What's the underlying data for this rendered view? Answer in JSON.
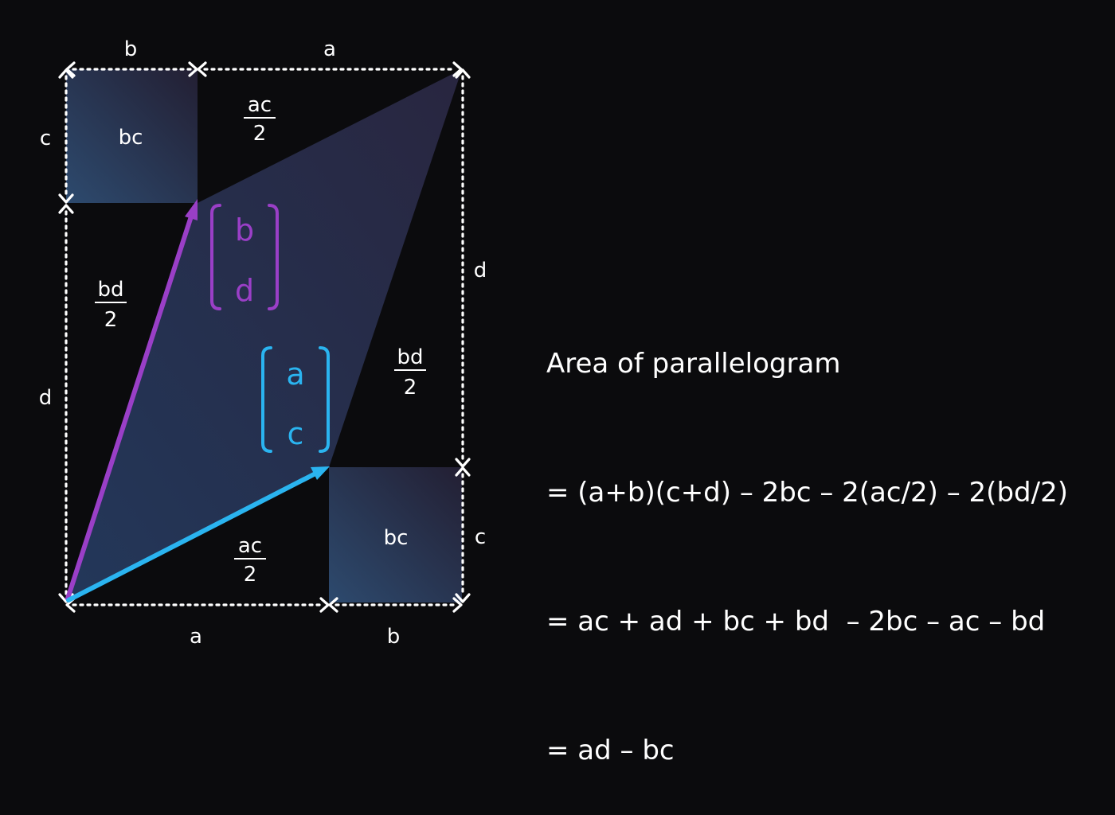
{
  "diagram": {
    "top_labels": {
      "left": "b",
      "right": "a"
    },
    "bottom_labels": {
      "left": "a",
      "right": "b"
    },
    "left_labels": {
      "top": "c",
      "bottom": "d"
    },
    "right_labels": {
      "top": "d",
      "bottom": "c"
    },
    "box_labels": {
      "top_left": "bc",
      "bottom_right": "bc"
    },
    "fractions": {
      "top": {
        "num": "ac",
        "den": "2"
      },
      "left": {
        "num": "bd",
        "den": "2"
      },
      "right": {
        "num": "bd",
        "den": "2"
      },
      "bottom": {
        "num": "ac",
        "den": "2"
      }
    },
    "vector_purple": {
      "top": "b",
      "bottom": "d",
      "color": "#9a3fc7"
    },
    "vector_blue": {
      "top": "a",
      "bottom": "c",
      "color": "#2ab4f0"
    }
  },
  "explanation": {
    "lines": [
      "Area of parallelogram",
      "= (a+b)(c+d) – 2bc – 2(ac/2) – 2(bd/2)",
      "= ac + ad + bc + bd  – 2bc – ac – bd",
      "= ad – bc"
    ]
  }
}
